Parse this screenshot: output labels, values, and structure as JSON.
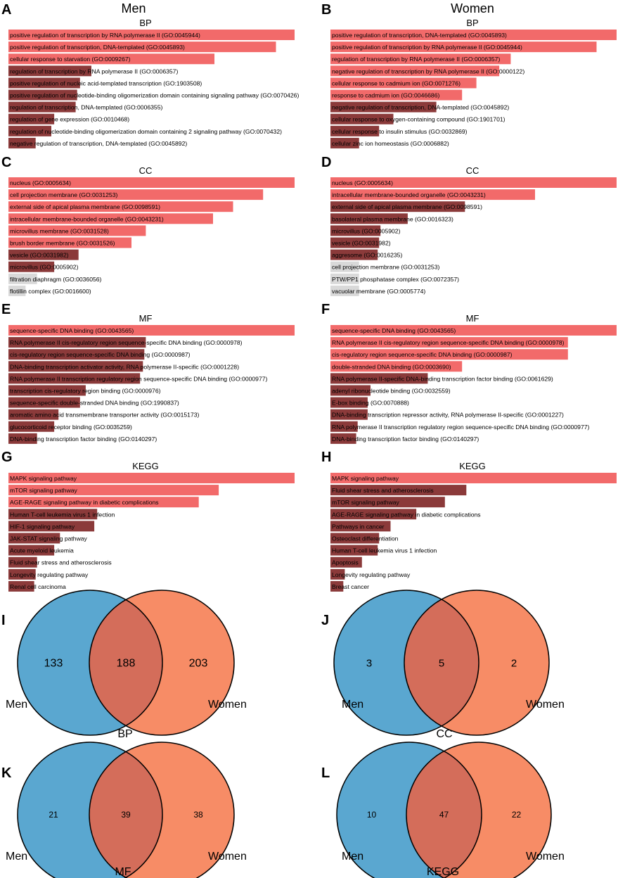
{
  "figure": {
    "group_titles": {
      "men": "Men",
      "women": "Women"
    },
    "colors": {
      "bar_high": "#f26a6a",
      "bar_low": "#8b3a3a",
      "bar_none": "#d9d9d9",
      "venn_men": "#5aa7d0",
      "venn_women": "#f78c66",
      "venn_overlap": "#d46d5a",
      "outline": "#000000"
    }
  },
  "chart_data": [
    {
      "panel": "A",
      "type": "bar",
      "orientation": "horizontal",
      "group": "Men",
      "title": "BP",
      "categories": [
        "positive regulation of transcription by RNA polymerase II (GO:0045944)",
        "positive regulation of transcription, DNA-templated (GO:0045893)",
        "cellular response to starvation (GO:0009267)",
        "regulation of transcription by RNA polymerase II (GO:0006357)",
        "positive regulation of nucleic acid-templated transcription (GO:1903508)",
        "positive regulation of nucleotide-binding oligomerization domain containing signaling pathway (GO:0070426)",
        "regulation of transcription, DNA-templated (GO:0006355)",
        "regulation of gene expression (GO:0010468)",
        "regulation of nucleotide-binding oligomerization domain containing 2 signaling pathway (GO:0070432)",
        "negative regulation of transcription, DNA-templated (GO:0045892)"
      ],
      "values": [
        1.0,
        0.935,
        0.72,
        0.29,
        0.25,
        0.24,
        0.235,
        0.16,
        0.15,
        0.095
      ],
      "shade": [
        "high",
        "high",
        "high",
        "low",
        "low",
        "low",
        "low",
        "low",
        "low",
        "low"
      ]
    },
    {
      "panel": "B",
      "type": "bar",
      "orientation": "horizontal",
      "group": "Women",
      "title": "BP",
      "categories": [
        "positive regulation of transcription, DNA-templated (GO:0045893)",
        "positive regulation of transcription by RNA polymerase II (GO:0045944)",
        "regulation of transcription by RNA polymerase II (GO:0006357)",
        "negative regulation of transcription by RNA polymerase II (GO:0000122)",
        "cellular response to cadmium ion (GO:0071276)",
        "response to cadmium ion (GO:0046686)",
        "negative regulation of transcription, DNA-templated (GO:0045892)",
        "cellular response to oxygen-containing compound (GO:1901701)",
        "cellular response to insulin stimulus (GO:0032869)",
        "cellular zinc ion homeostasis (GO:0006882)"
      ],
      "values": [
        1.0,
        0.93,
        0.63,
        0.59,
        0.51,
        0.46,
        0.37,
        0.22,
        0.17,
        0.1
      ],
      "shade": [
        "high",
        "high",
        "high",
        "high",
        "high",
        "high",
        "low",
        "low",
        "low",
        "low"
      ]
    },
    {
      "panel": "C",
      "type": "bar",
      "orientation": "horizontal",
      "group": "Men",
      "title": "CC",
      "categories": [
        "nucleus (GO:0005634)",
        "cell projection membrane (GO:0031253)",
        "external side of apical plasma membrane (GO:0098591)",
        "intracellular membrane-bounded organelle (GO:0043231)",
        "microvillus membrane (GO:0031528)",
        "brush border membrane (GO:0031526)",
        "vesicle (GO:0031982)",
        "microvillus (GO:0005902)",
        "filtration diaphragm (GO:0036056)",
        "flotillin complex (GO:0016600)"
      ],
      "values": [
        1.0,
        0.89,
        0.785,
        0.715,
        0.48,
        0.43,
        0.245,
        0.16,
        0.1,
        0.06
      ],
      "shade": [
        "high",
        "high",
        "high",
        "high",
        "high",
        "high",
        "low",
        "low",
        "none",
        "none"
      ]
    },
    {
      "panel": "D",
      "type": "bar",
      "orientation": "horizontal",
      "group": "Women",
      "title": "CC",
      "categories": [
        "nucleus (GO:0005634)",
        "intracellular membrane-bounded organelle (GO:0043231)",
        "external side of apical plasma membrane (GO:0098591)",
        "basolateral plasma membrane (GO:0016323)",
        "microvillus (GO:0005902)",
        "vesicle (GO:0031982)",
        "aggresome (GO:0016235)",
        "cell projection membrane (GO:0031253)",
        "PTW/PP1 phosphatase complex (GO:0072357)",
        "vacuolar membrane (GO:0005774)"
      ],
      "values": [
        1.0,
        0.715,
        0.47,
        0.27,
        0.175,
        0.17,
        0.165,
        0.1,
        0.1,
        0.1
      ],
      "shade": [
        "high",
        "high",
        "low",
        "low",
        "low",
        "low",
        "low",
        "none",
        "none",
        "none"
      ]
    },
    {
      "panel": "E",
      "type": "bar",
      "orientation": "horizontal",
      "group": "Men",
      "title": "MF",
      "categories": [
        "sequence-specific DNA binding (GO:0043565)",
        "RNA polymerase II cis-regulatory region sequence-specific DNA binding (GO:0000978)",
        "cis-regulatory region sequence-specific DNA binding (GO:0000987)",
        "DNA-binding transcription activator activity, RNA polymerase II-specific (GO:0001228)",
        "RNA polymerase II transcription regulatory region sequence-specific DNA binding (GO:0000977)",
        "transcription cis-regulatory region binding (GO:0000976)",
        "sequence-specific double-stranded DNA binding (GO:1990837)",
        "aromatic amino acid transmembrane transporter activity (GO:0015173)",
        "glucocorticoid receptor binding (GO:0035259)",
        "DNA-binding transcription factor binding (GO:0140297)"
      ],
      "values": [
        1.0,
        0.48,
        0.475,
        0.47,
        0.46,
        0.27,
        0.25,
        0.175,
        0.16,
        0.1
      ],
      "shade": [
        "high",
        "low",
        "low",
        "low",
        "low",
        "low",
        "low",
        "low",
        "low",
        "low"
      ]
    },
    {
      "panel": "F",
      "type": "bar",
      "orientation": "horizontal",
      "group": "Women",
      "title": "MF",
      "categories": [
        "sequence-specific DNA binding (GO:0043565)",
        "RNA polymerase II cis-regulatory region sequence-specific DNA binding (GO:0000978)",
        "cis-regulatory region sequence-specific DNA binding (GO:0000987)",
        "double-stranded DNA binding (GO:0003690)",
        "RNA polymerase II-specific DNA-binding transcription factor binding (GO:0061629)",
        "adenyl ribonucleotide binding (GO:0032559)",
        "E-box binding (GO:0070888)",
        "DNA-binding transcription repressor activity, RNA polymerase II-specific (GO:0001227)",
        "RNA polymerase II transcription regulatory region sequence-specific DNA binding (GO:0000977)",
        "DNA-binding transcription factor binding (GO:0140297)"
      ],
      "values": [
        1.0,
        0.83,
        0.83,
        0.46,
        0.34,
        0.14,
        0.13,
        0.13,
        0.095,
        0.09
      ],
      "shade": [
        "high",
        "high",
        "high",
        "high",
        "low",
        "low",
        "low",
        "low",
        "low",
        "low"
      ]
    },
    {
      "panel": "G",
      "type": "bar",
      "orientation": "horizontal",
      "group": "Men",
      "title": "KEGG",
      "categories": [
        "MAPK signaling pathway",
        "mTOR signaling pathway",
        "AGE-RAGE signaling pathway in diabetic complications",
        "Human T-cell leukemia virus 1 infection",
        "HIF-1 signaling pathway",
        "JAK-STAT signaling pathway",
        "Acute myeloid leukemia",
        "Fluid shear stress and atherosclerosis",
        "Longevity regulating pathway",
        "Renal cell carcinoma"
      ],
      "values": [
        1.0,
        0.735,
        0.665,
        0.31,
        0.3,
        0.18,
        0.16,
        0.1,
        0.095,
        0.09
      ],
      "shade": [
        "high",
        "high",
        "high",
        "low",
        "low",
        "low",
        "low",
        "low",
        "low",
        "low"
      ]
    },
    {
      "panel": "H",
      "type": "bar",
      "orientation": "horizontal",
      "group": "Women",
      "title": "KEGG",
      "categories": [
        "MAPK signaling pathway",
        "Fluid shear stress and atherosclerosis",
        "mTOR signaling pathway",
        "AGE-RAGE signaling pathway in diabetic complications",
        "Pathways in cancer",
        "Osteoclast differentiation",
        "Human T-cell leukemia virus 1 infection",
        "Apoptosis",
        "Longevity regulating pathway",
        "Breast cancer"
      ],
      "values": [
        1.0,
        0.475,
        0.4,
        0.3,
        0.21,
        0.17,
        0.165,
        0.11,
        0.05,
        0.045
      ],
      "shade": [
        "high",
        "low",
        "low",
        "low",
        "low",
        "low",
        "low",
        "low",
        "low",
        "low"
      ]
    },
    {
      "panel": "I",
      "type": "venn",
      "sets": [
        "Men",
        "Women"
      ],
      "only_left": "133",
      "overlap": "188",
      "only_right": "203",
      "label": "BP"
    },
    {
      "panel": "J",
      "type": "venn",
      "sets": [
        "Men",
        "Women"
      ],
      "only_left": "3",
      "overlap": "5",
      "only_right": "2",
      "label": "CC"
    },
    {
      "panel": "K",
      "type": "venn",
      "sets": [
        "Men",
        "Women"
      ],
      "only_left": "21",
      "overlap": "39",
      "only_right": "38",
      "label": "MF"
    },
    {
      "panel": "L",
      "type": "venn",
      "sets": [
        "Men",
        "Women"
      ],
      "only_left": "10",
      "overlap": "47",
      "only_right": "22",
      "label": "KEGG"
    }
  ]
}
